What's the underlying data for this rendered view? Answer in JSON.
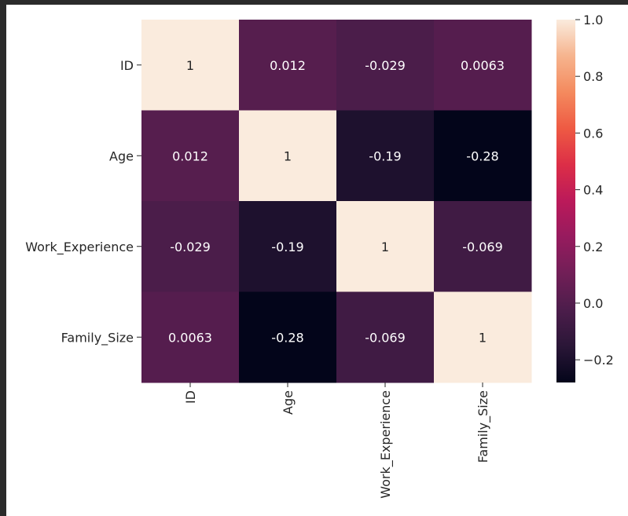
{
  "chart_data": {
    "type": "heatmap",
    "title": "",
    "xlabel": "",
    "ylabel": "",
    "x_categories": [
      "ID",
      "Age",
      "Work_Experience",
      "Family_Size"
    ],
    "y_categories": [
      "ID",
      "Age",
      "Work_Experience",
      "Family_Size"
    ],
    "matrix": [
      [
        1,
        0.012,
        -0.029,
        0.0063
      ],
      [
        0.012,
        1,
        -0.19,
        -0.28
      ],
      [
        -0.029,
        -0.19,
        1,
        -0.069
      ],
      [
        0.0063,
        -0.28,
        -0.069,
        1
      ]
    ],
    "cell_labels": [
      [
        "1",
        "0.012",
        "-0.029",
        "0.0063"
      ],
      [
        "0.012",
        "1",
        "-0.19",
        "-0.28"
      ],
      [
        "-0.029",
        "-0.19",
        "1",
        "-0.069"
      ],
      [
        "0.0063",
        "-0.28",
        "-0.069",
        "1"
      ]
    ],
    "colorbar": {
      "range": [
        -0.28,
        1.0
      ],
      "ticks": [
        1.0,
        0.8,
        0.6,
        0.4,
        0.2,
        0.0,
        -0.2
      ],
      "tick_labels": [
        "1.0",
        "0.8",
        "0.6",
        "0.4",
        "0.2",
        "0.0",
        "−0.2"
      ],
      "position": "right"
    },
    "colormap": "rocket",
    "colormap_stops": [
      "#03051a",
      "#2a1637",
      "#4c1d4b",
      "#711f57",
      "#961b5e",
      "#bb1a5a",
      "#dc2e47",
      "#ee5a43",
      "#f48a5e",
      "#f6b48e",
      "#faebdd"
    ]
  }
}
